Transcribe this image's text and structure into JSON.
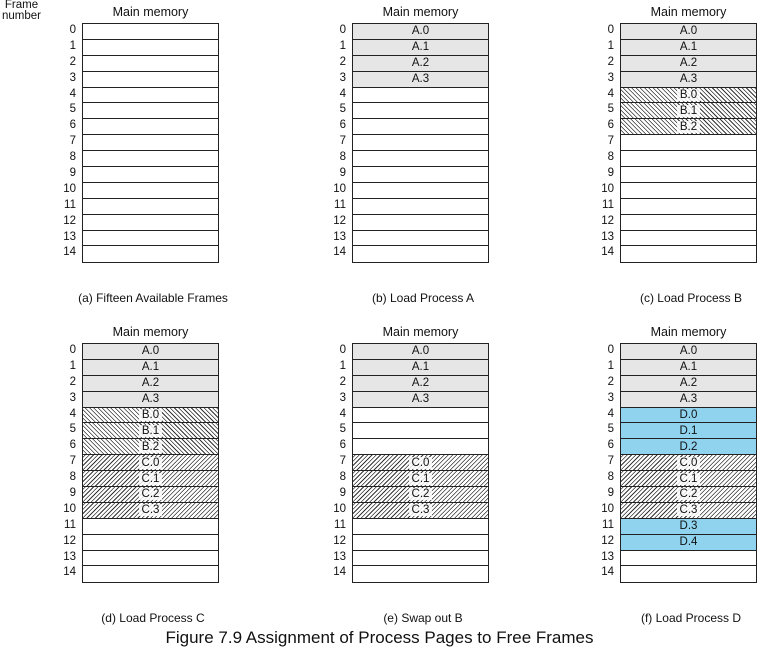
{
  "frame_header": "Frame\nnumber",
  "memory_label": "Main memory",
  "frame_numbers": [
    "0",
    "1",
    "2",
    "3",
    "4",
    "5",
    "6",
    "7",
    "8",
    "9",
    "10",
    "11",
    "12",
    "13",
    "14"
  ],
  "panels": [
    {
      "id": "a",
      "caption": "(a) Fifteen Available Frames",
      "cells": [
        "",
        "",
        "",
        "",
        "",
        "",
        "",
        "",
        "",
        "",
        "",
        "",
        "",
        "",
        ""
      ],
      "styles": [
        "",
        "",
        "",
        "",
        "",
        "",
        "",
        "",
        "",
        "",
        "",
        "",
        "",
        "",
        ""
      ]
    },
    {
      "id": "b",
      "caption": "(b) Load Process A",
      "cells": [
        "A.0",
        "A.1",
        "A.2",
        "A.3",
        "",
        "",
        "",
        "",
        "",
        "",
        "",
        "",
        "",
        "",
        ""
      ],
      "styles": [
        "gray",
        "gray",
        "gray",
        "gray",
        "",
        "",
        "",
        "",
        "",
        "",
        "",
        "",
        "",
        "",
        ""
      ]
    },
    {
      "id": "c",
      "caption": "(c) Load Process B",
      "cells": [
        "A.0",
        "A.1",
        "A.2",
        "A.3",
        "B.0",
        "B.1",
        "B.2",
        "",
        "",
        "",
        "",
        "",
        "",
        "",
        ""
      ],
      "styles": [
        "gray",
        "gray",
        "gray",
        "gray",
        "hatchB",
        "hatchB",
        "hatchB",
        "",
        "",
        "",
        "",
        "",
        "",
        "",
        ""
      ]
    },
    {
      "id": "d",
      "caption": "(d) Load Process C",
      "cells": [
        "A.0",
        "A.1",
        "A.2",
        "A.3",
        "B.0",
        "B.1",
        "B.2",
        "C.0",
        "C.1",
        "C.2",
        "C.3",
        "",
        "",
        "",
        ""
      ],
      "styles": [
        "gray",
        "gray",
        "gray",
        "gray",
        "hatchB",
        "hatchB",
        "hatchB",
        "hatchC",
        "hatchC",
        "hatchC",
        "hatchC",
        "",
        "",
        "",
        ""
      ]
    },
    {
      "id": "e",
      "caption": "(e) Swap out B",
      "cells": [
        "A.0",
        "A.1",
        "A.2",
        "A.3",
        "",
        "",
        "",
        "C.0",
        "C.1",
        "C.2",
        "C.3",
        "",
        "",
        "",
        ""
      ],
      "styles": [
        "gray",
        "gray",
        "gray",
        "gray",
        "",
        "",
        "",
        "hatchC",
        "hatchC",
        "hatchC",
        "hatchC",
        "",
        "",
        "",
        ""
      ]
    },
    {
      "id": "f",
      "caption": "(f) Load Process D",
      "cells": [
        "A.0",
        "A.1",
        "A.2",
        "A.3",
        "D.0",
        "D.1",
        "D.2",
        "C.0",
        "C.1",
        "C.2",
        "C.3",
        "D.3",
        "D.4",
        "",
        ""
      ],
      "styles": [
        "gray",
        "gray",
        "gray",
        "gray",
        "blue",
        "blue",
        "blue",
        "hatchC",
        "hatchC",
        "hatchC",
        "hatchC",
        "blue",
        "blue",
        "",
        ""
      ]
    }
  ],
  "figure_caption": "Figure 7.9   Assignment of Process Pages to Free Frames"
}
